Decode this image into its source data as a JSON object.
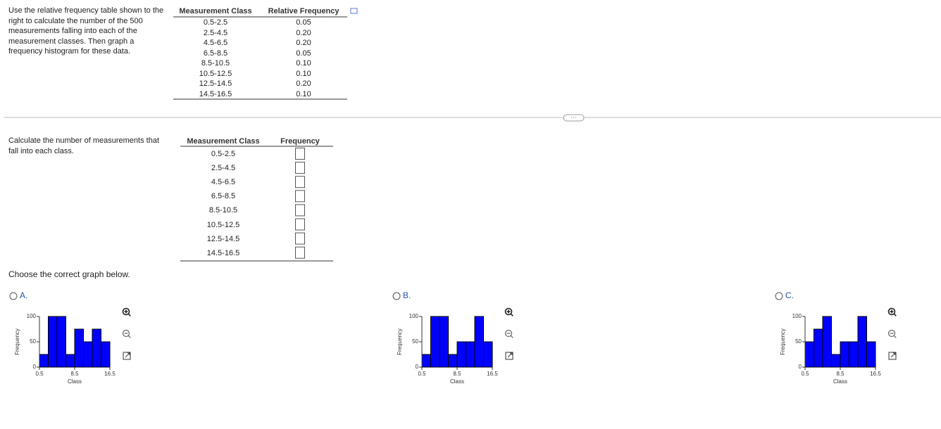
{
  "intro": "Use the relative frequency table shown to the right to calculate the number of the 500 measurements falling into each of the measurement classes. Then graph a frequency histogram for these data.",
  "table1": {
    "headers": [
      "Measurement Class",
      "Relative Frequency"
    ],
    "rows": [
      [
        "0.5-2.5",
        "0.05"
      ],
      [
        "2.5-4.5",
        "0.20"
      ],
      [
        "4.5-6.5",
        "0.20"
      ],
      [
        "6.5-8.5",
        "0.05"
      ],
      [
        "8.5-10.5",
        "0.10"
      ],
      [
        "10.5-12.5",
        "0.10"
      ],
      [
        "12.5-14.5",
        "0.20"
      ],
      [
        "14.5-16.5",
        "0.10"
      ]
    ]
  },
  "prompt2": "Calculate the number of measurements that fall into each class.",
  "table2": {
    "headers": [
      "Measurement Class",
      "Frequency"
    ],
    "rows": [
      "0.5-2.5",
      "2.5-4.5",
      "4.5-6.5",
      "6.5-8.5",
      "8.5-10.5",
      "10.5-12.5",
      "12.5-14.5",
      "14.5-16.5"
    ]
  },
  "prompt3": "Choose the correct graph below.",
  "options": [
    "A.",
    "B.",
    "C."
  ],
  "chart_data": [
    {
      "type": "histogram",
      "bins": [
        0.5,
        2.5,
        4.5,
        6.5,
        8.5,
        10.5,
        12.5,
        14.5,
        16.5
      ],
      "values": [
        25,
        100,
        100,
        25,
        75,
        50,
        75,
        50
      ],
      "color": "#0000ff",
      "xlim": [
        0.5,
        16.5
      ],
      "xticks": [
        0.5,
        8.5,
        16.5
      ],
      "ylim": [
        0,
        100
      ],
      "yticks": [
        0,
        50,
        100
      ],
      "xlabel": "Class",
      "ylabel": "Frequency"
    },
    {
      "type": "histogram",
      "bins": [
        0.5,
        2.5,
        4.5,
        6.5,
        8.5,
        10.5,
        12.5,
        14.5,
        16.5
      ],
      "values": [
        25,
        100,
        100,
        25,
        50,
        50,
        100,
        50
      ],
      "color": "#0000ff",
      "xlim": [
        0.5,
        16.5
      ],
      "xticks": [
        0.5,
        8.5,
        16.5
      ],
      "ylim": [
        0,
        100
      ],
      "yticks": [
        0,
        50,
        100
      ],
      "xlabel": "Class",
      "ylabel": "Frequency"
    },
    {
      "type": "histogram",
      "bins": [
        0.5,
        2.5,
        4.5,
        6.5,
        8.5,
        10.5,
        12.5,
        14.5,
        16.5
      ],
      "values": [
        50,
        75,
        100,
        25,
        50,
        50,
        100,
        50
      ],
      "color": "#0000ff",
      "xlim": [
        0.5,
        16.5
      ],
      "xticks": [
        0.5,
        8.5,
        16.5
      ],
      "ylim": [
        0,
        100
      ],
      "yticks": [
        0,
        50,
        100
      ],
      "xlabel": "Class",
      "ylabel": "Frequency"
    }
  ]
}
